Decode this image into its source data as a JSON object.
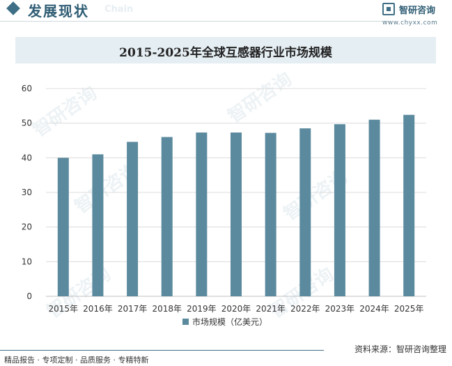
{
  "header": {
    "section_title": "发展现状",
    "ghost_text": "Chain"
  },
  "brand": {
    "name": "智研咨询",
    "url": "www.chyxx.com"
  },
  "chart_data": {
    "type": "bar",
    "title": "2015-2025年全球互感器行业市场规模",
    "categories": [
      "2015年",
      "2016年",
      "2017年",
      "2018年",
      "2019年",
      "2020年",
      "2021年",
      "2022年",
      "2023年",
      "2024年",
      "2025年"
    ],
    "series": [
      {
        "name": "市场规模（亿美元）",
        "values": [
          40.0,
          41.0,
          44.6,
          46.0,
          47.3,
          47.3,
          47.2,
          48.5,
          49.7,
          51.0,
          52.4
        ]
      }
    ],
    "ylim": [
      0,
      60
    ],
    "yticks": [
      0,
      10,
      20,
      30,
      40,
      50,
      60
    ],
    "xlabel": "",
    "ylabel": "",
    "legend": "bottom-center",
    "grid": true,
    "bar_color": "#5b8a9e"
  },
  "footer": {
    "tags": "精品报告 · 专项定制 · 品质服务 · 专精特新",
    "source": "资料来源：智研咨询整理"
  }
}
